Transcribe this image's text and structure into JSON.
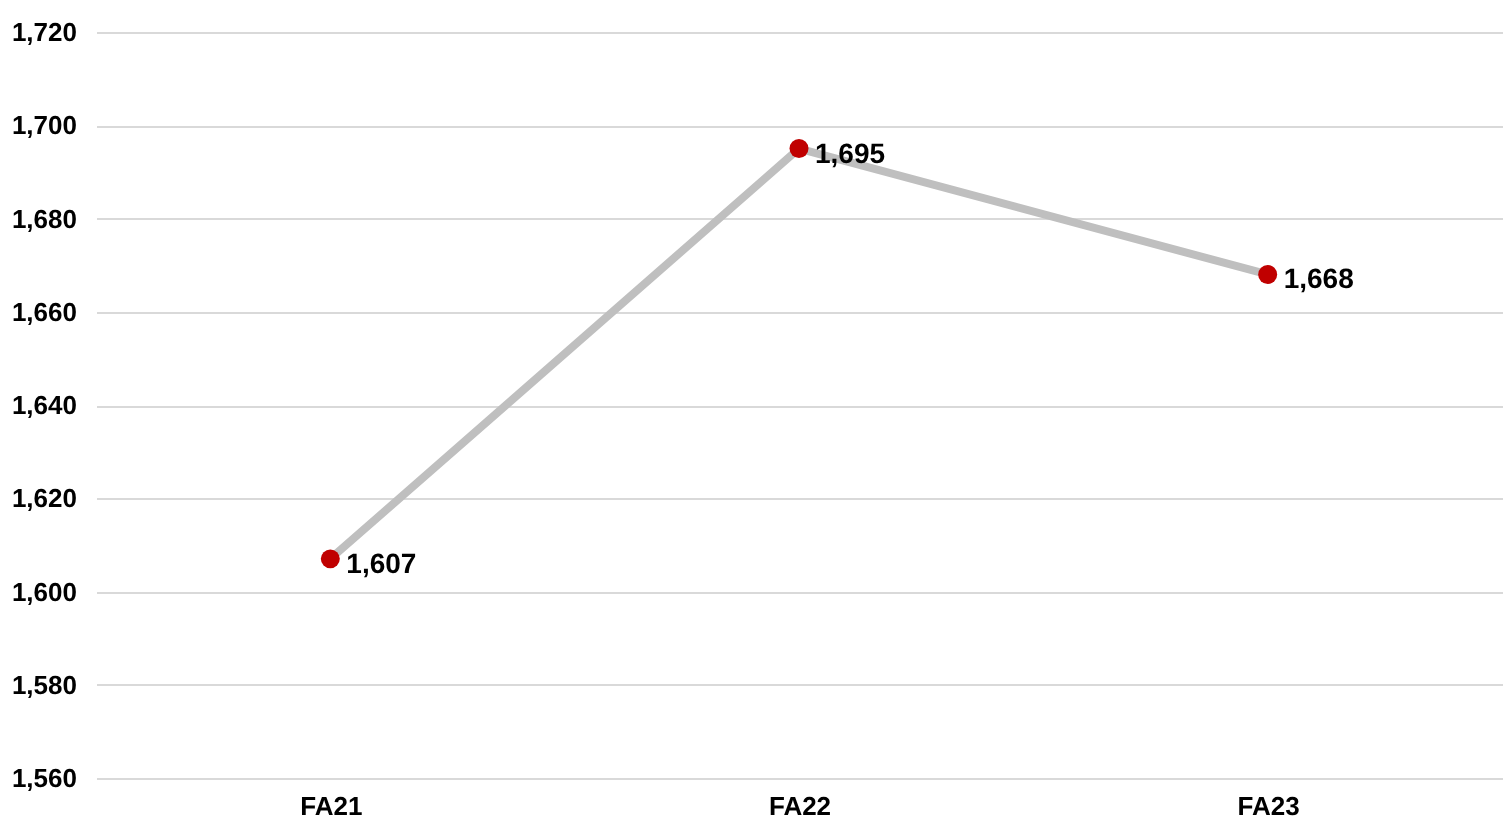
{
  "chart_data": {
    "type": "line",
    "categories": [
      "FA21",
      "FA22",
      "FA23"
    ],
    "series": [
      {
        "color": "#bfbfbf",
        "colors": [
          "#c00000",
          "#c00000",
          "#c00000"
        ],
        "values": [
          1607,
          1695,
          1668
        ],
        "value_labels": [
          "1,607",
          "1,695",
          "1,668"
        ]
      }
    ],
    "marker": "circle",
    "line_style": "solid",
    "grid": "y",
    "legend": false,
    "ylim": [
      1560,
      1720
    ],
    "yticks": [
      {
        "value": 1560,
        "label": "1,560"
      },
      {
        "value": 1580,
        "label": "1,580"
      },
      {
        "value": 1600,
        "label": "1,600"
      },
      {
        "value": 1620,
        "label": "1,620"
      },
      {
        "value": 1640,
        "label": "1,640"
      },
      {
        "value": 1660,
        "label": "1,660"
      },
      {
        "value": 1680,
        "label": "1,680"
      },
      {
        "value": 1700,
        "label": "1,700"
      },
      {
        "value": 1720,
        "label": "1,720"
      }
    ]
  }
}
